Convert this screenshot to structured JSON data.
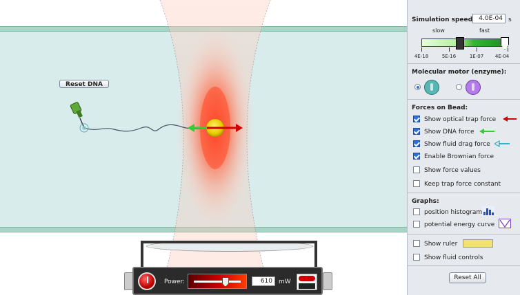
{
  "sim": {
    "reset_dna_label": "Reset DNA",
    "laser": {
      "power_label": "Power:",
      "power_value": "610",
      "power_unit": "mW",
      "power_fraction": 0.66
    }
  },
  "panel": {
    "speed": {
      "label": "Simulation speed:",
      "value": "4.0E-04",
      "unit": "s",
      "slow_label": "slow",
      "fast_label": "fast",
      "ticks": [
        "4E-18",
        "5E-16",
        "1E-07",
        "4E-04"
      ]
    },
    "motor": {
      "title": "Molecular motor (enzyme):",
      "options": [
        {
          "selected": true,
          "color": "#59b4b4"
        },
        {
          "selected": false,
          "color": "#b27be8"
        }
      ]
    },
    "forces": {
      "title": "Forces on Bead:",
      "items": [
        {
          "label": "Show optical trap force",
          "checked": true,
          "arrow": "red-left-arrow-icon",
          "color": "#d00000"
        },
        {
          "label": "Show DNA force",
          "checked": true,
          "arrow": "green-left-arrow-icon",
          "color": "#33cc33"
        },
        {
          "label": "Show fluid drag force",
          "checked": true,
          "arrow": "cyan-left-arrow-icon",
          "color": "#33b0c8"
        },
        {
          "label": "Enable Brownian force",
          "checked": true
        },
        {
          "label": "Show force values",
          "checked": false
        },
        {
          "label": "Keep trap force constant",
          "checked": false
        }
      ]
    },
    "graphs": {
      "title": "Graphs:",
      "items": [
        {
          "label": "position histogram",
          "checked": false,
          "icon": "histogram-icon"
        },
        {
          "label": "potential energy curve",
          "checked": false,
          "icon": "energy-curve-icon"
        }
      ]
    },
    "extras": [
      {
        "label": "Show ruler",
        "checked": false,
        "icon": "ruler-icon"
      },
      {
        "label": "Show fluid controls",
        "checked": false
      }
    ],
    "reset_all_label": "Reset All"
  },
  "colors": {
    "fluid": "#d8ecec",
    "laser_core": "#ff5a3c",
    "bead": "#f2d400",
    "dna": "#445566",
    "panel_bg": "#e6e9ee"
  }
}
